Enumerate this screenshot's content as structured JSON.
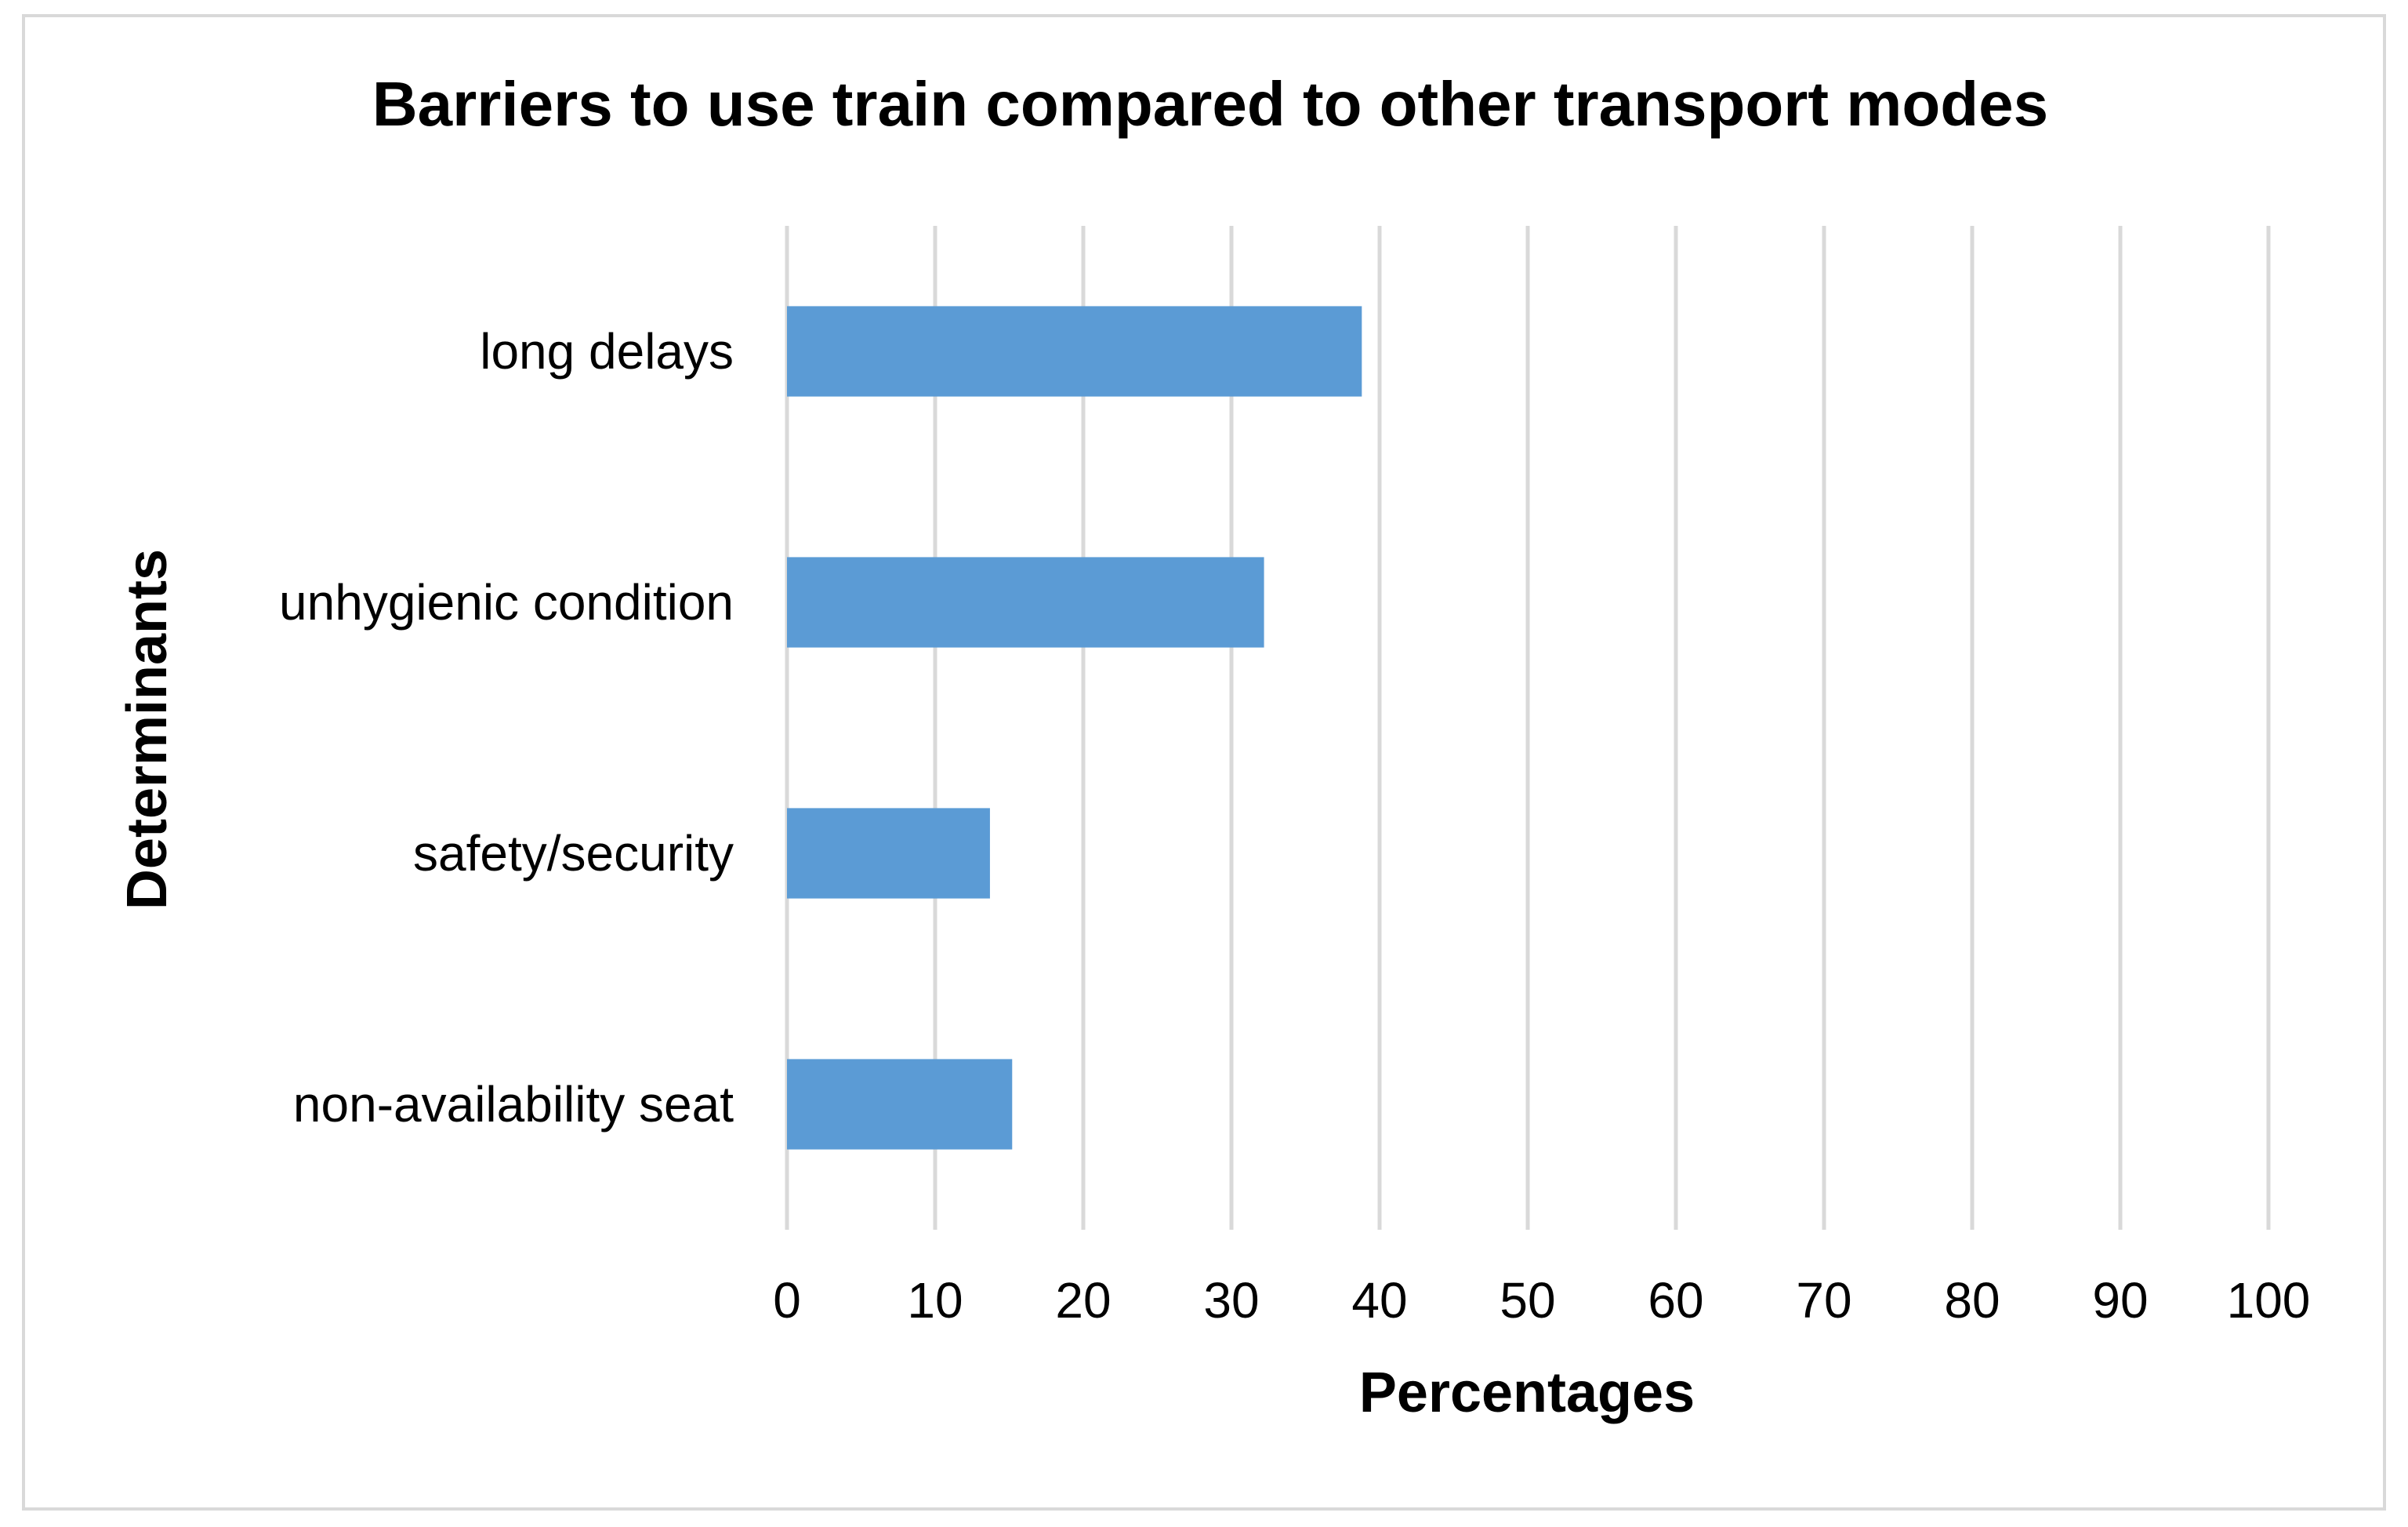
{
  "chart_data": {
    "type": "bar",
    "orientation": "horizontal",
    "title": "Barriers to use train compared to other transport modes",
    "xlabel": "Percentages",
    "ylabel": "Determinants",
    "categories": [
      "long delays",
      "unhygienic condition",
      "safety/security",
      "non-availability seat"
    ],
    "values": [
      38.8,
      32.2,
      13.7,
      15.2
    ],
    "xlim": [
      0,
      100
    ],
    "xticks": [
      0,
      10,
      20,
      30,
      40,
      50,
      60,
      70,
      80,
      90,
      100
    ],
    "xtick_labels": [
      "0",
      "10",
      "20",
      "30",
      "40",
      "50",
      "60",
      "70",
      "80",
      "90",
      "100"
    ],
    "grid": "vertical",
    "legend": "none",
    "colors": {
      "bar": "#5b9bd5",
      "grid": "#d9d9d9",
      "border": "#d9d9d9"
    }
  }
}
